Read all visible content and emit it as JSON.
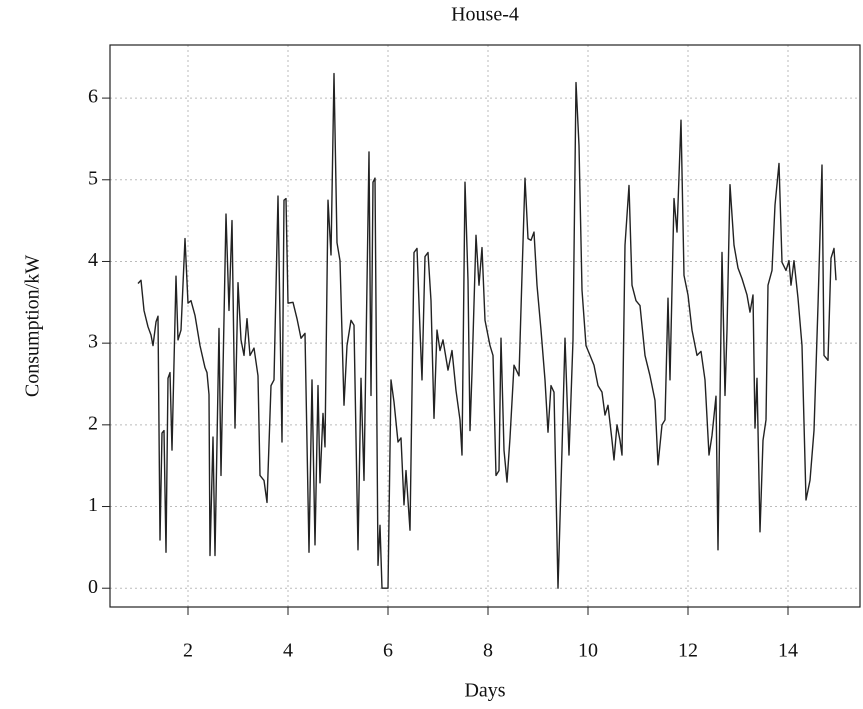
{
  "chart_data": {
    "type": "line",
    "title": "House-4",
    "xlabel": "Days",
    "ylabel": "Consumption/kW",
    "xlim": [
      0.44,
      15.44
    ],
    "ylim": [
      -0.23,
      6.65
    ],
    "xticks": [
      2,
      4,
      6,
      8,
      10,
      12,
      14
    ],
    "yticks": [
      0,
      1,
      2,
      3,
      4,
      5,
      6
    ],
    "grid": true,
    "x": [
      1.0,
      1.06,
      1.12,
      1.2,
      1.26,
      1.3,
      1.36,
      1.4,
      1.44,
      1.48,
      1.52,
      1.56,
      1.6,
      1.64,
      1.68,
      1.76,
      1.8,
      1.86,
      1.94,
      2.0,
      2.06,
      2.14,
      2.24,
      2.34,
      2.38,
      2.42,
      2.44,
      2.5,
      2.54,
      2.62,
      2.66,
      2.76,
      2.82,
      2.88,
      2.94,
      3.0,
      3.06,
      3.12,
      3.18,
      3.24,
      3.32,
      3.4,
      3.44,
      3.52,
      3.58,
      3.66,
      3.72,
      3.8,
      3.88,
      3.92,
      3.96,
      4.0,
      4.1,
      4.18,
      4.26,
      4.34,
      4.42,
      4.48,
      4.54,
      4.6,
      4.64,
      4.7,
      4.74,
      4.8,
      4.86,
      4.92,
      4.98,
      5.04,
      5.12,
      5.18,
      5.26,
      5.32,
      5.4,
      5.46,
      5.52,
      5.62,
      5.66,
      5.7,
      5.74,
      5.8,
      5.84,
      5.88,
      6.0,
      6.06,
      6.12,
      6.2,
      6.26,
      6.32,
      6.36,
      6.44,
      6.52,
      6.58,
      6.64,
      6.68,
      6.74,
      6.8,
      6.86,
      6.92,
      6.98,
      7.04,
      7.1,
      7.2,
      7.28,
      7.36,
      7.44,
      7.48,
      7.54,
      7.6,
      7.64,
      7.68,
      7.76,
      7.82,
      7.88,
      7.94,
      8.04,
      8.1,
      8.16,
      8.22,
      8.26,
      8.32,
      8.38,
      8.44,
      8.52,
      8.62,
      8.68,
      8.74,
      8.8,
      8.86,
      8.92,
      8.98,
      9.06,
      9.14,
      9.2,
      9.26,
      9.32,
      9.4,
      9.48,
      9.54,
      9.62,
      9.7,
      9.76,
      9.82,
      9.88,
      9.96,
      10.04,
      10.12,
      10.2,
      10.28,
      10.34,
      10.4,
      10.48,
      10.52,
      10.58,
      10.64,
      10.68,
      10.74,
      10.82,
      10.88,
      10.96,
      11.04,
      11.14,
      11.24,
      11.34,
      11.4,
      11.48,
      11.54,
      11.6,
      11.64,
      11.72,
      11.78,
      11.86,
      11.92,
      12.0,
      12.08,
      12.18,
      12.26,
      12.34,
      12.42,
      12.48,
      12.56,
      12.6,
      12.68,
      12.74,
      12.78,
      12.84,
      12.92,
      13.0,
      13.08,
      13.18,
      13.24,
      13.3,
      13.34,
      13.38,
      13.44,
      13.5,
      13.56,
      13.6,
      13.68,
      13.74,
      13.82,
      13.88,
      13.96,
      14.02,
      14.06,
      14.12,
      14.2,
      14.28,
      14.36,
      14.44,
      14.52,
      14.6,
      14.68,
      14.72,
      14.8,
      14.86,
      14.92,
      14.96
    ],
    "series": [
      {
        "color": "#222222",
        "values": [
          3.73,
          3.77,
          3.4,
          3.2,
          3.1,
          2.97,
          3.26,
          3.33,
          0.59,
          1.9,
          1.93,
          0.44,
          2.57,
          2.64,
          1.69,
          3.82,
          3.04,
          3.16,
          4.28,
          3.49,
          3.52,
          3.34,
          2.97,
          2.7,
          2.64,
          2.37,
          0.4,
          1.85,
          0.4,
          3.18,
          1.38,
          4.58,
          3.4,
          4.5,
          1.96,
          3.74,
          3.04,
          2.85,
          3.3,
          2.85,
          2.94,
          2.6,
          1.38,
          1.32,
          1.05,
          2.48,
          2.55,
          4.8,
          1.79,
          4.75,
          4.77,
          3.49,
          3.5,
          3.3,
          3.06,
          3.12,
          0.44,
          2.55,
          0.53,
          2.48,
          1.29,
          2.14,
          1.73,
          4.75,
          4.08,
          6.3,
          4.23,
          4.01,
          2.24,
          2.97,
          3.28,
          3.22,
          0.47,
          2.57,
          1.32,
          5.34,
          2.36,
          4.97,
          5.02,
          0.28,
          0.77,
          0,
          0,
          2.55,
          2.28,
          1.79,
          1.84,
          1.02,
          1.44,
          0.71,
          4.11,
          4.16,
          3.16,
          2.55,
          4.06,
          4.11,
          3.52,
          2.08,
          3.16,
          2.91,
          3.04,
          2.67,
          2.91,
          2.42,
          2.06,
          1.63,
          4.97,
          3.77,
          1.93,
          2.64,
          4.32,
          3.71,
          4.17,
          3.28,
          2.97,
          2.85,
          1.38,
          1.44,
          3.06,
          1.69,
          1.3,
          1.84,
          2.73,
          2.6,
          3.83,
          5.02,
          4.28,
          4.26,
          4.36,
          3.71,
          3.16,
          2.55,
          1.91,
          2.48,
          2.4,
          0,
          1.69,
          3.06,
          1.63,
          3.04,
          6.19,
          5.42,
          3.65,
          2.97,
          2.85,
          2.73,
          2.48,
          2.4,
          2.12,
          2.24,
          1.81,
          1.57,
          2.0,
          1.81,
          1.63,
          4.2,
          4.93,
          3.71,
          3.52,
          3.46,
          2.85,
          2.6,
          2.3,
          1.51,
          2.0,
          2.06,
          3.55,
          2.55,
          4.77,
          4.36,
          5.73,
          3.83,
          3.59,
          3.16,
          2.85,
          2.9,
          2.55,
          1.63,
          1.87,
          2.35,
          0.47,
          4.11,
          2.36,
          3.16,
          4.94,
          4.2,
          3.92,
          3.79,
          3.59,
          3.38,
          3.59,
          1.96,
          2.57,
          0.69,
          1.81,
          2.06,
          3.71,
          3.89,
          4.69,
          5.2,
          3.99,
          3.89,
          4.01,
          3.71,
          4.01,
          3.55,
          2.97,
          1.08,
          1.32,
          1.93,
          3.46,
          5.18,
          2.85,
          2.79,
          4.04,
          4.16,
          3.77
        ]
      }
    ]
  }
}
